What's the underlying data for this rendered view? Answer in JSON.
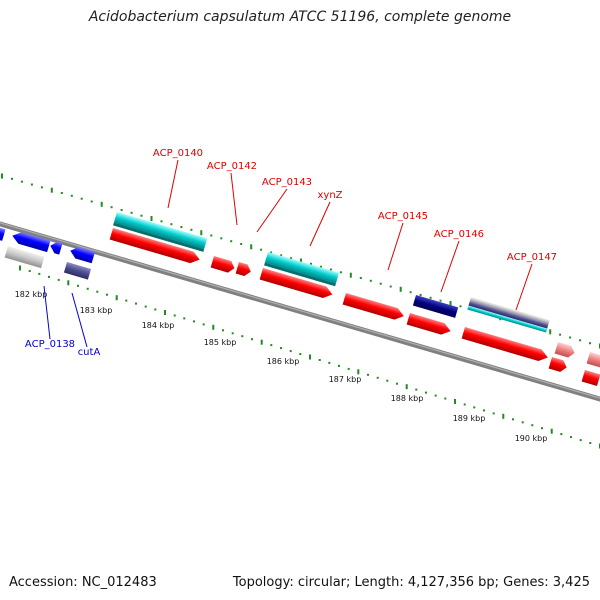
{
  "title": "Acidobacterium capsulatum ATCC 51196, complete genome",
  "accession": "Accession: NC_012483",
  "summary": "Topology: circular; Length: 4,127,356 bp; Genes: 3,425",
  "colors": {
    "forward_cds": "#ff0000",
    "reverse_cds": "#0000ff",
    "rna": "#00cccc",
    "pseudogene_light": "#cccccc",
    "dark_navy": "#000080",
    "slate": "#4b4b8f",
    "pink": "#f08080",
    "backbone": "#808080",
    "tick": "#228b22",
    "forward_label": "#dd0000",
    "reverse_label": "#0000cc"
  },
  "ticks": [
    "182 kbp",
    "183 kbp",
    "184 kbp",
    "185 kbp",
    "186 kbp",
    "187 kbp",
    "188 kbp",
    "189 kbp",
    "190 kbp"
  ],
  "labels": [
    {
      "text": "ACP_0140",
      "strand": "forward"
    },
    {
      "text": "ACP_0142",
      "strand": "forward"
    },
    {
      "text": "ACP_0143",
      "strand": "forward"
    },
    {
      "text": "xynZ",
      "strand": "forward"
    },
    {
      "text": "ACP_0145",
      "strand": "forward"
    },
    {
      "text": "ACP_0146",
      "strand": "forward"
    },
    {
      "text": "ACP_0147",
      "strand": "forward"
    },
    {
      "text": "ACP_0138",
      "strand": "reverse"
    },
    {
      "text": "cutA",
      "strand": "reverse"
    }
  ]
}
